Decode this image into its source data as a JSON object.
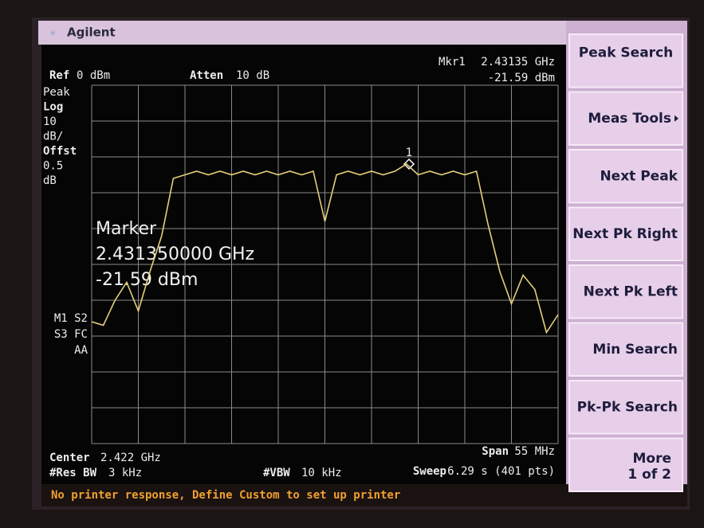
{
  "header": {
    "brand": "Agilent"
  },
  "screen": {
    "ref": {
      "label": "Ref",
      "value": "0 dBm"
    },
    "atten": {
      "label": "Atten",
      "value": "10 dB"
    },
    "marker_readout": {
      "label": "Mkr1",
      "frequency": "2.43135 GHz",
      "amplitude": "-21.59 dBm"
    },
    "left_panel": [
      "Peak",
      "Log",
      "10",
      "dB/",
      "Offst",
      "0.5",
      "dB"
    ],
    "status_flags": [
      "M1 S2",
      "S3 FC",
      "AA"
    ],
    "marker_popup": [
      "Marker",
      "2.431350000 GHz",
      "-21.59 dBm"
    ],
    "marker_number": "1",
    "center": {
      "label": "Center",
      "value": "2.422 GHz"
    },
    "res_bw": {
      "label": "#Res BW",
      "value": "3 kHz"
    },
    "vbw": {
      "label": "#VBW",
      "value": "10 kHz"
    },
    "span": {
      "label": "Span",
      "value": "55 MHz"
    },
    "sweep": {
      "label": "Sweep",
      "value": "6.29 s (401 pts)"
    },
    "trace": {
      "color": "#e6cf78",
      "ylim": [
        -100,
        0
      ],
      "values": [
        -66,
        -67,
        -60,
        -55,
        -63,
        -52,
        -42,
        -26,
        -25,
        -24,
        -25,
        -24,
        -25,
        -24,
        -25,
        -24,
        -25,
        -24,
        -25,
        -24,
        -38,
        -25,
        -24,
        -25,
        -24,
        -25,
        -24,
        -22,
        -25,
        -24,
        -25,
        -24,
        -25,
        -24,
        -39,
        -52,
        -61,
        -53,
        -57,
        -69,
        -64
      ]
    }
  },
  "softkeys": [
    {
      "label": "Peak Search"
    },
    {
      "label": "Meas Tools"
    },
    {
      "label": "Next Peak"
    },
    {
      "label": "Next Pk Right"
    },
    {
      "label": "Next Pk Left"
    },
    {
      "label": "Min Search"
    },
    {
      "label": "Pk-Pk Search"
    },
    {
      "label": "More",
      "sub": "1 of 2"
    }
  ],
  "status_line": "No printer response, Define Custom to set up printer"
}
